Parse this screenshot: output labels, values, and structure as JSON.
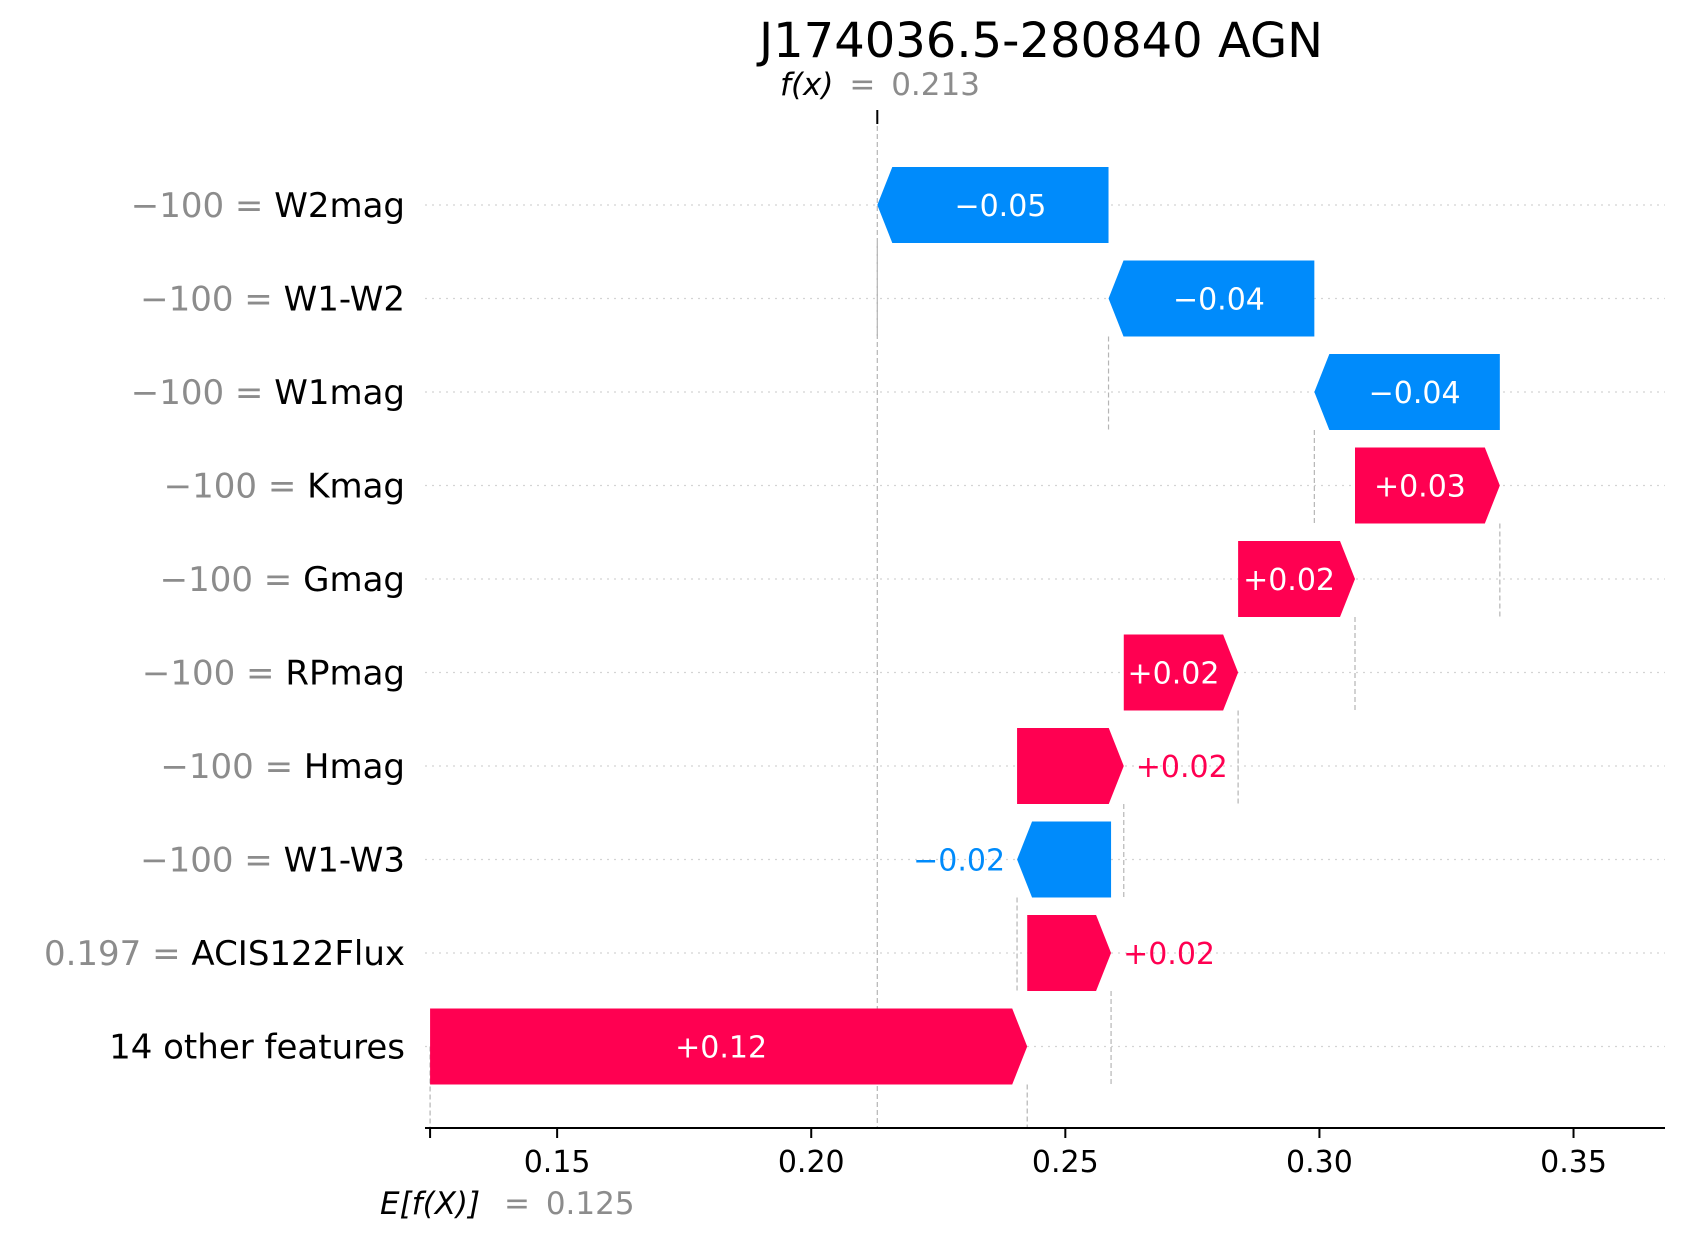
{
  "chart_data": {
    "type": "waterfall",
    "title": "J174036.5-280840 AGN",
    "fx_label": "f(x)",
    "fx_value": "0.213",
    "fx": 0.213,
    "ex_label": "E[f(X)]",
    "ex_value": "0.125",
    "ex": 0.125,
    "xlim": [
      0.124,
      0.368
    ],
    "xticks": [
      0.15,
      0.2,
      0.25,
      0.3,
      0.35
    ],
    "xtick_labels": [
      "0.15",
      "0.20",
      "0.25",
      "0.30",
      "0.35"
    ],
    "colors": {
      "positive": "#ff0051",
      "negative": "#008bfb",
      "text_grey": "#8c8c8c"
    },
    "features": [
      {
        "value_text": "−100",
        "name": "W2mag",
        "shap": -0.0455,
        "label": "−0.05",
        "start": 0.2585
      },
      {
        "value_text": "−100",
        "name": "W1-W2",
        "shap": -0.0405,
        "label": "−0.04",
        "start": 0.299
      },
      {
        "value_text": "−100",
        "name": "W1mag",
        "shap": -0.0365,
        "label": "−0.04",
        "start": 0.3355
      },
      {
        "value_text": "−100",
        "name": "Kmag",
        "shap": 0.0285,
        "label": "+0.03",
        "start": 0.307
      },
      {
        "value_text": "−100",
        "name": "Gmag",
        "shap": 0.023,
        "label": "+0.02",
        "start": 0.284
      },
      {
        "value_text": "−100",
        "name": "RPmag",
        "shap": 0.0225,
        "label": "+0.02",
        "start": 0.2615
      },
      {
        "value_text": "−100",
        "name": "Hmag",
        "shap": 0.021,
        "label": "+0.02",
        "start": 0.2405
      },
      {
        "value_text": "−100",
        "name": "W1-W3",
        "shap": -0.0185,
        "label": "−0.02",
        "start": 0.259
      },
      {
        "value_text": "0.197",
        "name": "ACIS122Flux",
        "shap": 0.0165,
        "label": "+0.02",
        "start": 0.2425
      },
      {
        "value_text": "",
        "name": "14 other features",
        "shap": 0.1175,
        "label": "+0.12",
        "start": 0.125
      }
    ]
  }
}
